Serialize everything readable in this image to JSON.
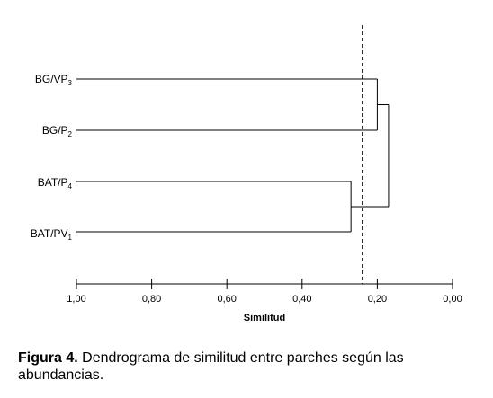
{
  "dendrogram": {
    "leaves": [
      {
        "base": "BG/VP",
        "sub": "3"
      },
      {
        "base": "BG/P",
        "sub": "2"
      },
      {
        "base": "BAT/P",
        "sub": "4"
      },
      {
        "base": "BAT/PV",
        "sub": "1"
      }
    ],
    "merges": [
      {
        "a": "BG/VP3",
        "b": "BG/P2",
        "similarity": 0.2
      },
      {
        "a": "BAT/P4",
        "b": "BAT/PV1",
        "similarity": 0.27
      },
      {
        "a": "BG/VP3 + BG/P2",
        "b": "BAT/P4 + BAT/PV1",
        "similarity": 0.17
      }
    ],
    "cutoff": 0.24,
    "axis": {
      "title": "Similitud",
      "ticks": [
        "1,00",
        "0,80",
        "0,60",
        "0,40",
        "0,20",
        "0,00"
      ],
      "tick_values": [
        1.0,
        0.8,
        0.6,
        0.4,
        0.2,
        0.0
      ],
      "range": [
        1.0,
        0.0
      ]
    }
  },
  "caption": {
    "label": "Figura 4.",
    "text": " Dendrograma de similitud entre parches según las abundancias."
  }
}
